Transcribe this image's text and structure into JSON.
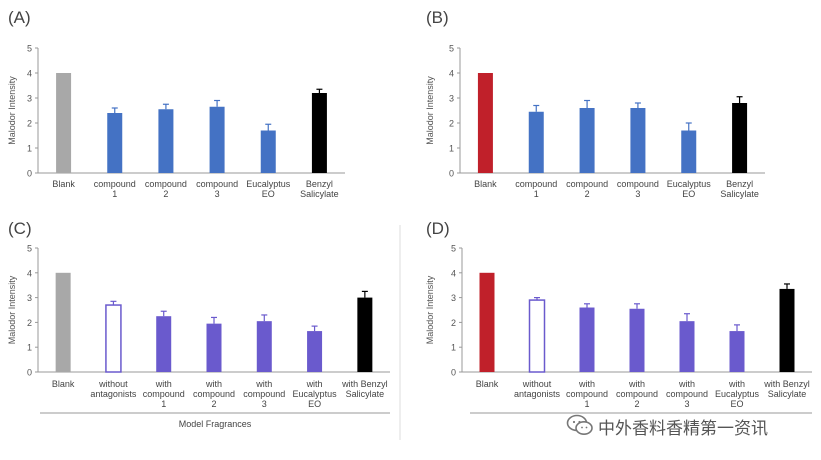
{
  "panels": [
    {
      "label": "(A)",
      "ylabel": "Malodor Intensity",
      "group_label": "",
      "chart_data": {
        "type": "bar",
        "ylabel": "Malodor Intensity",
        "ylim": [
          0,
          5
        ],
        "yticks": [
          "0",
          "1",
          "2",
          "3",
          "4",
          "5"
        ],
        "categories": [
          [
            "Blank"
          ],
          [
            "compound",
            "1"
          ],
          [
            "compound",
            "2"
          ],
          [
            "compound",
            "3"
          ],
          [
            "Eucalyptus",
            "EO"
          ],
          [
            "Benzyl",
            "Salicylate"
          ]
        ],
        "values": [
          4.0,
          2.4,
          2.55,
          2.65,
          1.7,
          3.2
        ],
        "errors": [
          0,
          0.2,
          0.2,
          0.25,
          0.25,
          0.15
        ],
        "colors": [
          "#a8a8a8",
          "#4472c4",
          "#4472c4",
          "#4472c4",
          "#4472c4",
          "#000000"
        ],
        "hollow": [
          false,
          false,
          false,
          false,
          false,
          false
        ]
      }
    },
    {
      "label": "(B)",
      "ylabel": "Malodor Intensity",
      "group_label": "",
      "chart_data": {
        "type": "bar",
        "ylabel": "Malodor Intensity",
        "ylim": [
          0,
          5
        ],
        "yticks": [
          "0",
          "1",
          "2",
          "3",
          "4",
          "5"
        ],
        "categories": [
          [
            "Blank"
          ],
          [
            "compound",
            "1"
          ],
          [
            "compound",
            "2"
          ],
          [
            "compound",
            "3"
          ],
          [
            "Eucalyptus",
            "EO"
          ],
          [
            "Benzyl",
            "Salicylate"
          ]
        ],
        "values": [
          4.0,
          2.45,
          2.6,
          2.6,
          1.7,
          2.8
        ],
        "errors": [
          0,
          0.25,
          0.3,
          0.2,
          0.3,
          0.25
        ],
        "colors": [
          "#c0202a",
          "#4472c4",
          "#4472c4",
          "#4472c4",
          "#4472c4",
          "#000000"
        ],
        "hollow": [
          false,
          false,
          false,
          false,
          false,
          false
        ]
      }
    },
    {
      "label": "(C)",
      "ylabel": "Malodor Intensity",
      "group_label": "Model Fragrances",
      "chart_data": {
        "type": "bar",
        "ylabel": "Malodor Intensity",
        "ylim": [
          0,
          5
        ],
        "yticks": [
          "0",
          "1",
          "2",
          "3",
          "4",
          "5"
        ],
        "categories": [
          [
            "Blank"
          ],
          [
            "without",
            "antagonists"
          ],
          [
            "with",
            "compound",
            "1"
          ],
          [
            "with",
            "compound",
            "2"
          ],
          [
            "with",
            "compound",
            "3"
          ],
          [
            "with",
            "Eucalyptus",
            "EO"
          ],
          [
            "with Benzyl",
            "Salicylate"
          ]
        ],
        "values": [
          4.0,
          2.7,
          2.25,
          1.95,
          2.05,
          1.65,
          3.0
        ],
        "errors": [
          0,
          0.15,
          0.2,
          0.25,
          0.25,
          0.2,
          0.25
        ],
        "colors": [
          "#a8a8a8",
          "#6a5acd",
          "#6a5acd",
          "#6a5acd",
          "#6a5acd",
          "#6a5acd",
          "#000000"
        ],
        "hollow": [
          false,
          true,
          false,
          false,
          false,
          false,
          false
        ]
      }
    },
    {
      "label": "(D)",
      "ylabel": "Malodor Intensity",
      "group_label": "",
      "chart_data": {
        "type": "bar",
        "ylabel": "Malodor Intensity",
        "ylim": [
          0,
          5
        ],
        "yticks": [
          "0",
          "1",
          "2",
          "3",
          "4",
          "5"
        ],
        "categories": [
          [
            "Blank"
          ],
          [
            "without",
            "antagonists"
          ],
          [
            "with",
            "compound",
            "1"
          ],
          [
            "with",
            "compound",
            "2"
          ],
          [
            "with",
            "compound",
            "3"
          ],
          [
            "with",
            "Eucalyptus",
            "EO"
          ],
          [
            "with Benzyl",
            "Salicylate"
          ]
        ],
        "values": [
          4.0,
          2.9,
          2.6,
          2.55,
          2.05,
          1.65,
          3.35
        ],
        "errors": [
          0,
          0.1,
          0.15,
          0.2,
          0.3,
          0.25,
          0.2
        ],
        "colors": [
          "#c0202a",
          "#6a5acd",
          "#6a5acd",
          "#6a5acd",
          "#6a5acd",
          "#6a5acd",
          "#000000"
        ],
        "hollow": [
          false,
          true,
          false,
          false,
          false,
          false,
          false
        ]
      }
    }
  ],
  "watermark": {
    "text": "中外香料香精第一资讯",
    "icon": "wechat-icon"
  }
}
